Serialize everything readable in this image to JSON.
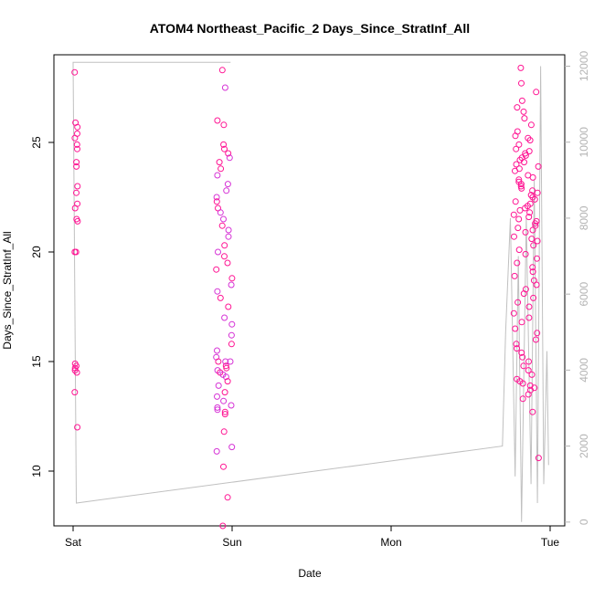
{
  "chart_data": {
    "type": "scatter",
    "title": "ATOM4 Northeast_Pacific_2 Days_Since_StratInf_All",
    "xlabel": "Date",
    "ylabel": "Days_Since_StratInf_All",
    "x_ticks": [
      "Sat",
      "Sun",
      "Mon",
      "Tue"
    ],
    "xlim_days": [
      -0.1,
      3.1
    ],
    "ylim": [
      7.5,
      29
    ],
    "y_ticks": [
      10,
      15,
      20,
      25
    ],
    "y2_ticks": [
      0,
      2000,
      4000,
      6000,
      8000,
      10000,
      12000
    ],
    "y2lim": [
      -100,
      12300
    ],
    "colors": {
      "points": "#ff1493",
      "points_alt": "#d633d6",
      "line": "#c0c0c0",
      "axis": "#000000",
      "right_axis": "#b3b3b3"
    },
    "series": [
      {
        "marker": "open-circle",
        "clusters": [
          {
            "x_center": 0.02,
            "x_spread": 0.01,
            "y_values": [
              28.2,
              25.9,
              25.7,
              25.4,
              25.2,
              24.9,
              24.7,
              24.1,
              23.9,
              23.0,
              22.7,
              22.2,
              22.0,
              21.5,
              21.4,
              20.0,
              20.0,
              14.9,
              14.8,
              14.7,
              14.6,
              14.5,
              13.6,
              12.0
            ]
          },
          {
            "x_center": 0.95,
            "x_spread": 0.05,
            "y_values": [
              28.3,
              27.5,
              26.0,
              25.8,
              24.9,
              24.7,
              24.5,
              24.3,
              24.1,
              23.8,
              23.5,
              23.1,
              22.8,
              22.5,
              22.3,
              22.0,
              21.8,
              21.5,
              21.2,
              21.0,
              20.7,
              20.3,
              20.0,
              19.8,
              19.5,
              19.2,
              18.8,
              18.5,
              18.2,
              17.9,
              17.5,
              17.0,
              16.7,
              16.2,
              15.8,
              15.5,
              15.2,
              15.0,
              15.0,
              15.0,
              14.8,
              14.7,
              14.6,
              14.5,
              14.4,
              14.3,
              14.1,
              13.9,
              13.6,
              13.4,
              13.2,
              13.0,
              12.9,
              12.8,
              12.7,
              12.6,
              11.8,
              11.1,
              10.9,
              10.2,
              8.8,
              7.5
            ]
          },
          {
            "x_center": 2.85,
            "x_spread": 0.08,
            "y_values": [
              28.4,
              27.7,
              27.3,
              26.9,
              26.6,
              26.4,
              26.1,
              25.8,
              25.5,
              25.3,
              25.2,
              25.1,
              24.9,
              24.7,
              24.6,
              24.5,
              24.4,
              24.3,
              24.2,
              24.1,
              24.0,
              23.9,
              23.8,
              23.7,
              23.5,
              23.4,
              23.3,
              23.2,
              23.1,
              23.0,
              22.9,
              22.8,
              22.7,
              22.6,
              22.5,
              22.4,
              22.3,
              22.2,
              22.1,
              22.0,
              21.9,
              21.8,
              21.7,
              21.6,
              21.5,
              21.4,
              21.3,
              21.2,
              21.1,
              21.0,
              20.9,
              20.7,
              20.6,
              20.5,
              20.3,
              20.1,
              19.9,
              19.7,
              19.5,
              19.3,
              19.1,
              18.9,
              18.7,
              18.5,
              18.3,
              18.1,
              17.9,
              17.7,
              17.5,
              17.2,
              17.0,
              16.8,
              16.5,
              16.3,
              16.0,
              15.8,
              15.6,
              15.4,
              15.2,
              15.0,
              14.8,
              14.6,
              14.4,
              14.2,
              14.1,
              14.0,
              13.9,
              13.8,
              13.7,
              13.5,
              13.3,
              12.7,
              10.6
            ]
          }
        ]
      },
      {
        "type": "line",
        "axis": "right",
        "points": [
          [
            0.02,
            12100
          ],
          [
            0.95,
            12100
          ],
          [
            0.99,
            12100
          ],
          [
            0.0,
            12100
          ],
          [
            0.02,
            500
          ],
          [
            2.7,
            2000
          ],
          [
            2.72,
            5000
          ],
          [
            2.75,
            8000
          ],
          [
            2.78,
            1200
          ],
          [
            2.8,
            7000
          ],
          [
            2.82,
            0
          ],
          [
            2.85,
            8000
          ],
          [
            2.88,
            1000
          ],
          [
            2.9,
            9000
          ],
          [
            2.92,
            500
          ],
          [
            2.94,
            12000
          ],
          [
            2.96,
            1000
          ],
          [
            2.98,
            4500
          ],
          [
            2.99,
            1500
          ]
        ]
      }
    ]
  }
}
